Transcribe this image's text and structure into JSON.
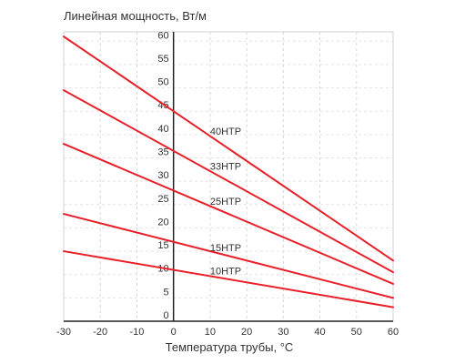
{
  "chart_data": {
    "type": "line",
    "ylabel": "Линейная мощность, Вт/м",
    "xlabel": "Температура трубы, °C",
    "xlim": [
      -30,
      60
    ],
    "ylim": [
      0,
      62
    ],
    "x_ticks": [
      -30,
      -20,
      -10,
      0,
      10,
      20,
      30,
      40,
      50,
      60
    ],
    "y_ticks": [
      0,
      5,
      10,
      15,
      20,
      25,
      30,
      35,
      40,
      45,
      50,
      55,
      60
    ],
    "grid": true,
    "line_color": "#e8202a",
    "series": [
      {
        "name": "40НТР",
        "x": [
          -30,
          60
        ],
        "y": [
          61,
          13
        ],
        "label_at": [
          10,
          40
        ]
      },
      {
        "name": "33НТР",
        "x": [
          -30,
          60
        ],
        "y": [
          49.5,
          10.5
        ],
        "label_at": [
          10,
          32.5
        ]
      },
      {
        "name": "25НТР",
        "x": [
          -30,
          60
        ],
        "y": [
          38,
          8
        ],
        "label_at": [
          10,
          25
        ]
      },
      {
        "name": "15НТР",
        "x": [
          -30,
          60
        ],
        "y": [
          23,
          5
        ],
        "label_at": [
          10,
          15
        ]
      },
      {
        "name": "10НТР",
        "x": [
          -30,
          60
        ],
        "y": [
          15,
          3
        ],
        "label_at": [
          10,
          10
        ]
      }
    ]
  }
}
